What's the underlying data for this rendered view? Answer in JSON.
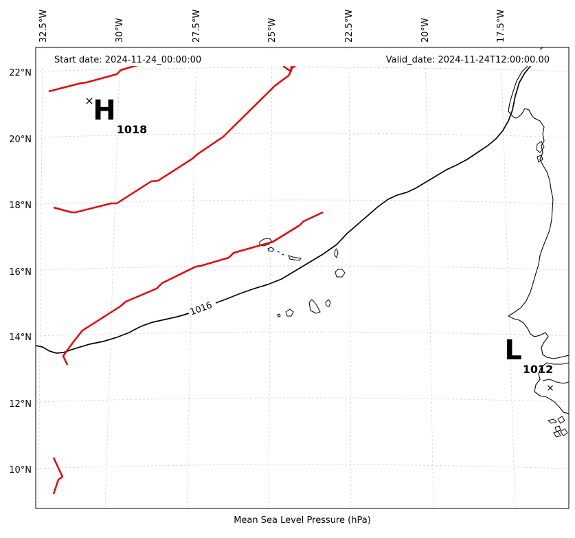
{
  "map": {
    "start_date": "Start date: 2024-11-24_00:00:00",
    "valid_date": "Valid_date: 2024-11-24T12:00:00.00",
    "xlabel": "Mean Sea Level Pressure (hPa)",
    "lon_labels": [
      "32.5°W",
      "30°W",
      "27.5°W",
      "25°W",
      "22.5°W",
      "20°W",
      "17.5°W"
    ],
    "lat_labels": [
      "22°N",
      "20°N",
      "18°N",
      "16°N",
      "14°N",
      "12°N",
      "10°N"
    ],
    "highs": [
      {
        "symbol": "H",
        "value": "1018"
      }
    ],
    "lows": [
      {
        "symbol": "L",
        "value": "1012"
      }
    ],
    "contour_labels": [
      "1016"
    ],
    "colors": {
      "front": "#ee0000",
      "isobar": "#000000",
      "grid": "#cccccc",
      "coast": "#000000"
    }
  }
}
